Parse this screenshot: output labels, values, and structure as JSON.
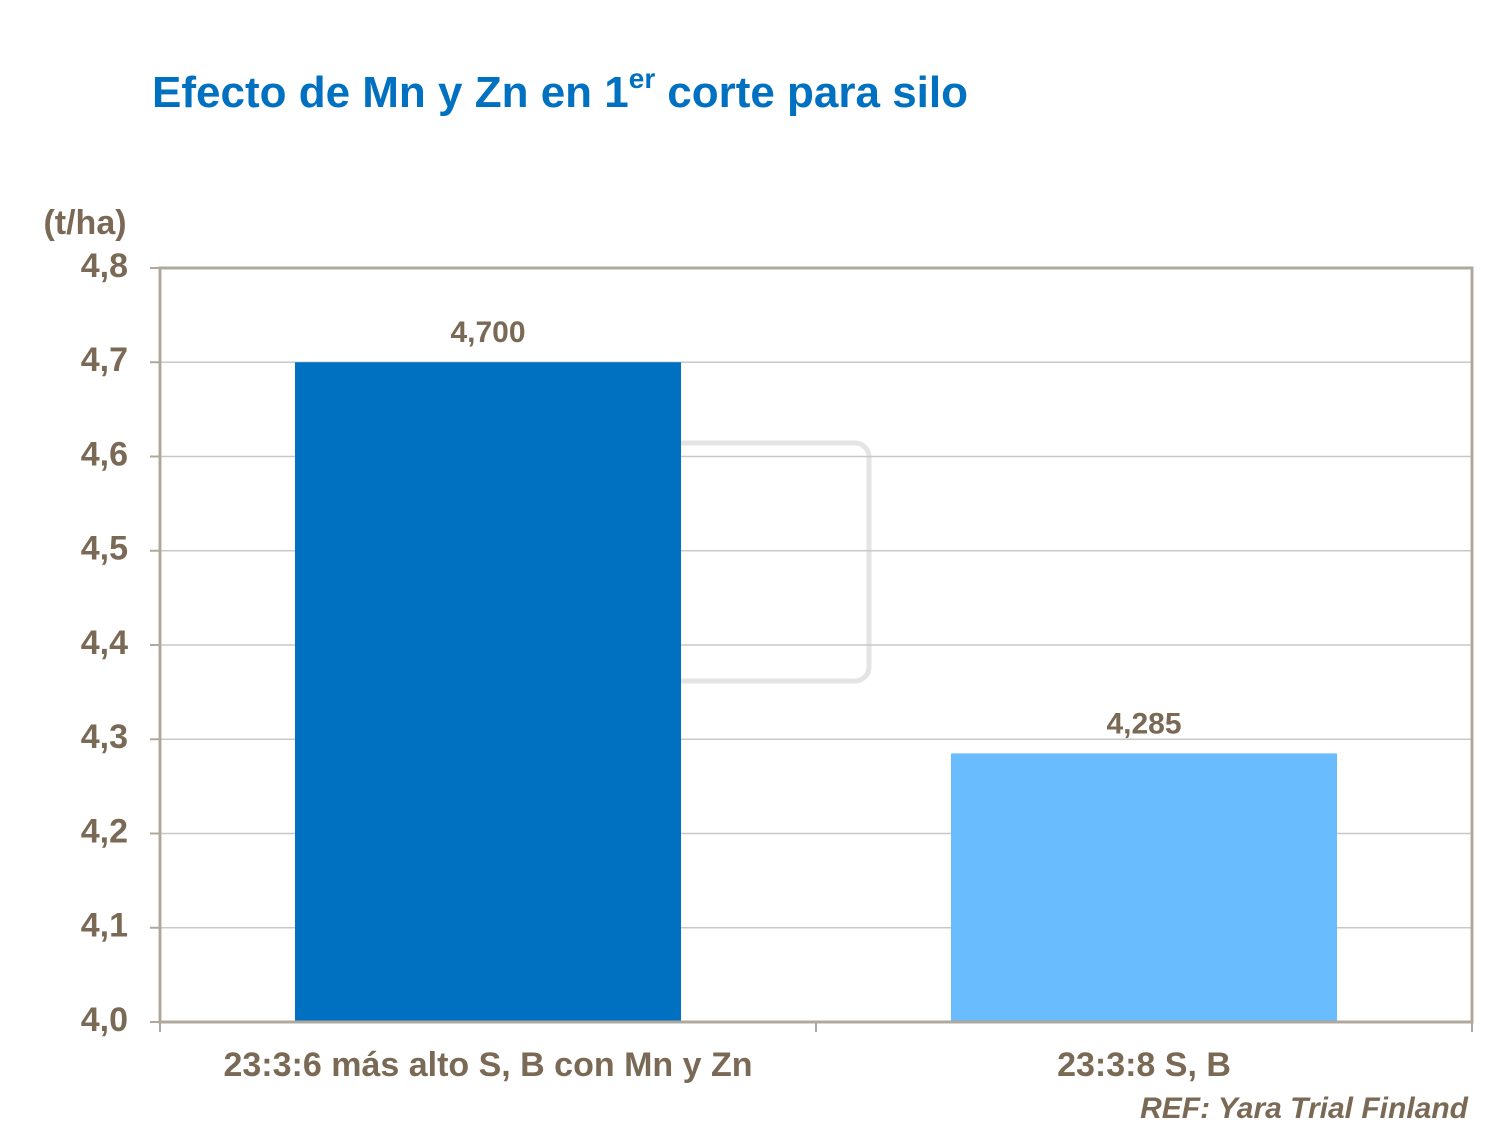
{
  "chart_data": {
    "type": "bar",
    "title": [
      "Efecto de Mn y Zn en 1",
      "er",
      "corte para silo"
    ],
    "y_label": "(t/ha)",
    "categories": [
      "23:3:6 más alto S, B con Mn y Zn",
      "23:3:8 S, B"
    ],
    "values": [
      4.7,
      4.285
    ],
    "value_labels": [
      "4,700",
      "4,285"
    ],
    "colors": [
      "#0070c0",
      "#69bdff"
    ],
    "ylim": [
      4.0,
      4.8
    ],
    "yticks": [
      {
        "value": 4.0,
        "label": "4,0"
      },
      {
        "value": 4.1,
        "label": "4,1"
      },
      {
        "value": 4.2,
        "label": "4,2"
      },
      {
        "value": 4.3,
        "label": "4,3"
      },
      {
        "value": 4.4,
        "label": "4,4"
      },
      {
        "value": 4.5,
        "label": "4,5"
      },
      {
        "value": 4.6,
        "label": "4,6"
      },
      {
        "value": 4.7,
        "label": "4,7"
      },
      {
        "value": 4.8,
        "label": "4,8"
      }
    ],
    "grid": true,
    "note": "REF: Yara Trial Finland"
  }
}
